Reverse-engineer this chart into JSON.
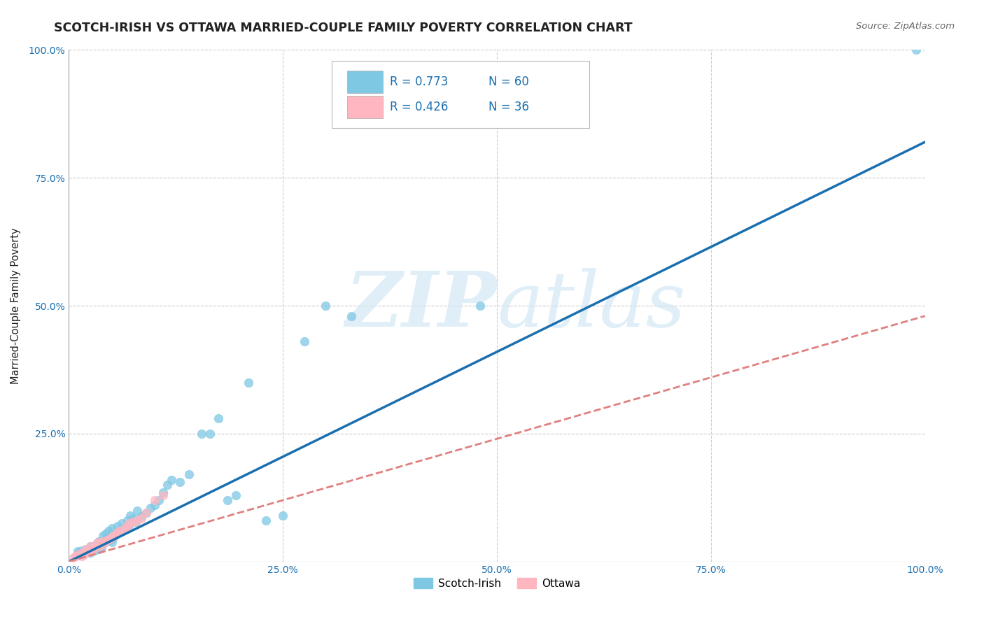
{
  "title": "SCOTCH-IRISH VS OTTAWA MARRIED-COUPLE FAMILY POVERTY CORRELATION CHART",
  "source": "Source: ZipAtlas.com",
  "ylabel": "Married-Couple Family Poverty",
  "watermark": "ZIPatlas",
  "scotch_irish_color": "#7ec8e3",
  "ottawa_color": "#ffb6c1",
  "scotch_irish_line_color": "#1a6faf",
  "ottawa_line_color": "#e08080",
  "background_color": "#ffffff",
  "grid_color": "#cccccc",
  "title_color": "#222222",
  "axis_label_color": "#1a6faf",
  "xlim": [
    0,
    1
  ],
  "ylim": [
    0,
    1
  ],
  "xticks": [
    0,
    0.25,
    0.5,
    0.75,
    1.0
  ],
  "yticks": [
    0.25,
    0.5,
    0.75,
    1.0
  ],
  "xticklabels": [
    "0.0%",
    "25.0%",
    "50.0%",
    "75.0%",
    "100.0%"
  ],
  "yticklabels": [
    "25.0%",
    "50.0%",
    "75.0%",
    "100.0%"
  ],
  "scotch_irish_x": [
    0.01,
    0.012,
    0.015,
    0.018,
    0.02,
    0.022,
    0.025,
    0.025,
    0.028,
    0.03,
    0.032,
    0.033,
    0.035,
    0.035,
    0.037,
    0.038,
    0.04,
    0.04,
    0.042,
    0.043,
    0.045,
    0.046,
    0.048,
    0.05,
    0.05,
    0.052,
    0.055,
    0.057,
    0.06,
    0.062,
    0.065,
    0.068,
    0.07,
    0.072,
    0.075,
    0.078,
    0.08,
    0.085,
    0.09,
    0.095,
    0.1,
    0.105,
    0.11,
    0.115,
    0.12,
    0.13,
    0.14,
    0.155,
    0.165,
    0.175,
    0.185,
    0.195,
    0.21,
    0.23,
    0.25,
    0.275,
    0.3,
    0.33,
    0.48,
    0.99
  ],
  "scotch_irish_y": [
    0.02,
    0.018,
    0.022,
    0.015,
    0.025,
    0.02,
    0.018,
    0.03,
    0.025,
    0.022,
    0.028,
    0.035,
    0.025,
    0.04,
    0.032,
    0.028,
    0.035,
    0.05,
    0.038,
    0.055,
    0.045,
    0.06,
    0.042,
    0.038,
    0.065,
    0.048,
    0.055,
    0.07,
    0.06,
    0.075,
    0.065,
    0.08,
    0.07,
    0.09,
    0.085,
    0.078,
    0.1,
    0.088,
    0.095,
    0.105,
    0.11,
    0.12,
    0.135,
    0.15,
    0.16,
    0.155,
    0.17,
    0.25,
    0.25,
    0.28,
    0.12,
    0.13,
    0.35,
    0.08,
    0.09,
    0.43,
    0.5,
    0.48,
    0.5,
    1.0
  ],
  "ottawa_x": [
    0.005,
    0.008,
    0.01,
    0.012,
    0.015,
    0.015,
    0.018,
    0.02,
    0.02,
    0.022,
    0.025,
    0.025,
    0.028,
    0.03,
    0.032,
    0.035,
    0.035,
    0.038,
    0.04,
    0.042,
    0.045,
    0.048,
    0.05,
    0.052,
    0.055,
    0.058,
    0.06,
    0.065,
    0.068,
    0.07,
    0.075,
    0.08,
    0.085,
    0.09,
    0.1,
    0.11
  ],
  "ottawa_y": [
    0.008,
    0.01,
    0.012,
    0.015,
    0.01,
    0.018,
    0.015,
    0.02,
    0.025,
    0.018,
    0.022,
    0.03,
    0.025,
    0.028,
    0.035,
    0.03,
    0.038,
    0.032,
    0.04,
    0.038,
    0.042,
    0.045,
    0.048,
    0.05,
    0.055,
    0.058,
    0.06,
    0.065,
    0.068,
    0.075,
    0.078,
    0.08,
    0.085,
    0.095,
    0.12,
    0.13
  ],
  "si_line_x": [
    0.0,
    1.0
  ],
  "si_line_y": [
    0.0,
    0.82
  ],
  "ot_line_x": [
    0.0,
    1.0
  ],
  "ot_line_y": [
    0.0,
    0.48
  ]
}
